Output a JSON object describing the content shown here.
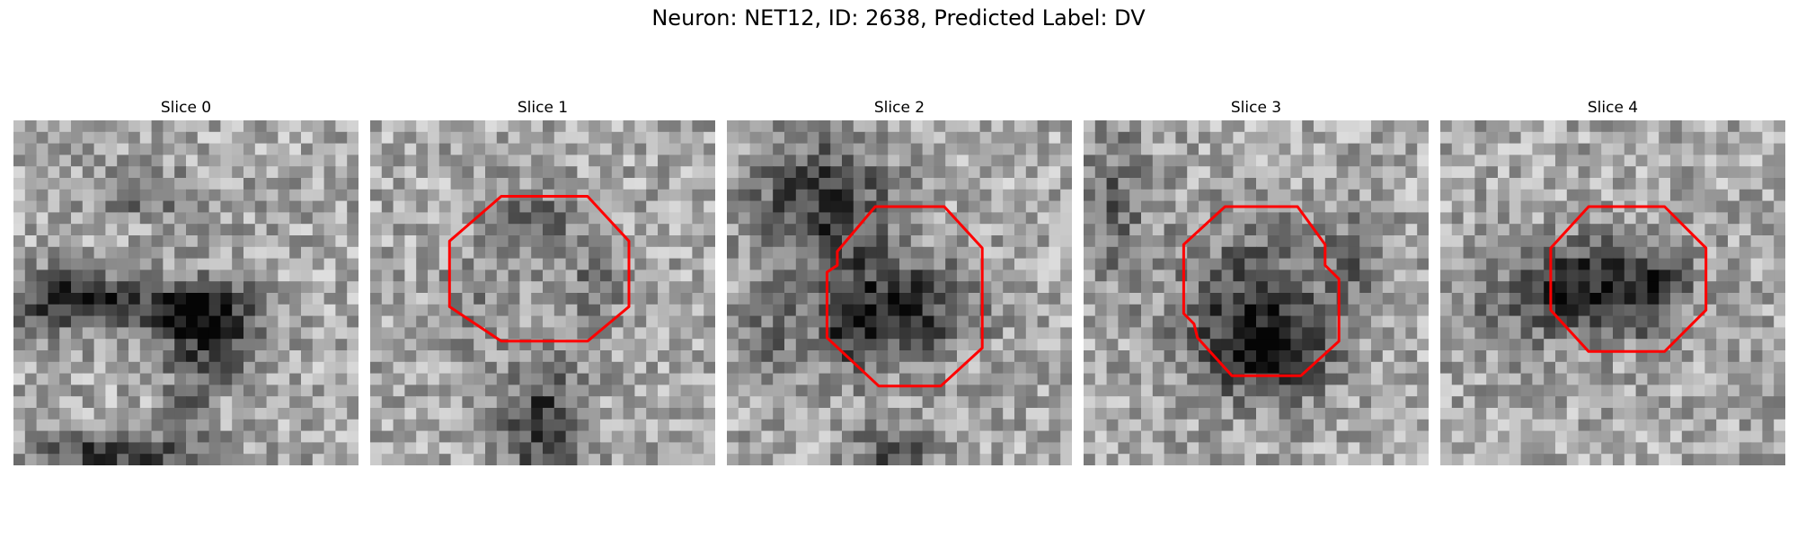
{
  "suptitle": "Neuron: NET12, ID: 2638, Predicted Label: DV",
  "contour_color": "#ff0000",
  "grid_size": 30,
  "panels": [
    {
      "title": "Slice 0",
      "has_contour": false
    },
    {
      "title": "Slice 1",
      "has_contour": true
    },
    {
      "title": "Slice 2",
      "has_contour": true
    },
    {
      "title": "Slice 3",
      "has_contour": true
    },
    {
      "title": "Slice 4",
      "has_contour": true
    }
  ]
}
